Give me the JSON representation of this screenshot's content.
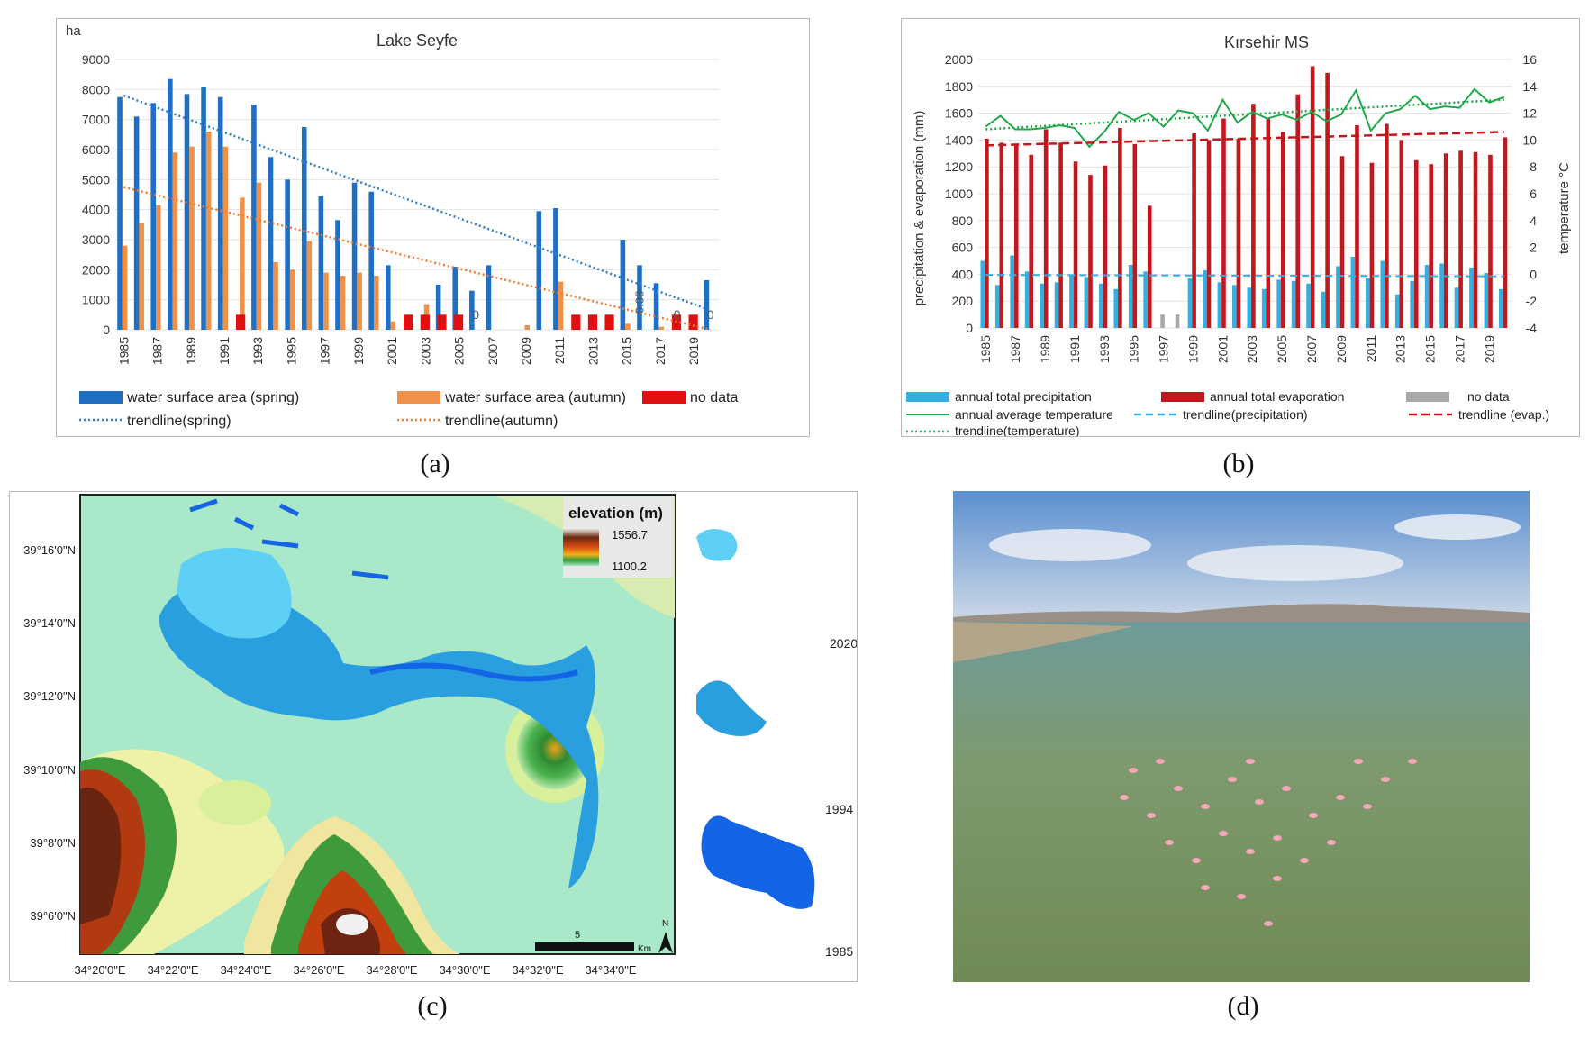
{
  "captions": {
    "a": "(a)",
    "b": "(b)",
    "c": "(c)",
    "d": "(d)"
  },
  "chart_data": [
    {
      "id": "a",
      "type": "bar",
      "title": "Lake Seyfe",
      "ylabel": "ha",
      "ylim": [
        0,
        9000
      ],
      "yticks": [
        0,
        1000,
        2000,
        3000,
        4000,
        5000,
        6000,
        7000,
        8000,
        9000
      ],
      "categories": [
        "1985",
        "1986",
        "1987",
        "1988",
        "1989",
        "1990",
        "1991",
        "1992",
        "1993",
        "1994",
        "1995",
        "1996",
        "1997",
        "1998",
        "1999",
        "2000",
        "2001",
        "2002",
        "2003",
        "2004",
        "2005",
        "2006",
        "2007",
        "2008",
        "2009",
        "2010",
        "2011",
        "2012",
        "2013",
        "2014",
        "2015",
        "2016",
        "2017",
        "2018",
        "2019",
        "2020"
      ],
      "xtick_labels": [
        "1985",
        "1987",
        "1989",
        "1991",
        "1993",
        "1995",
        "1997",
        "1999",
        "2001",
        "2003",
        "2005",
        "2007",
        "2009",
        "2011",
        "2013",
        "2015",
        "2017",
        "2019"
      ],
      "series": [
        {
          "name": "water surface area (spring)",
          "color": "#1f6fc5",
          "values": [
            7750,
            7100,
            7550,
            8350,
            7850,
            8100,
            7750,
            null,
            7500,
            5750,
            5000,
            6750,
            4450,
            3650,
            4900,
            4600,
            2150,
            null,
            null,
            1500,
            2100,
            1300,
            2150,
            0,
            null,
            3950,
            4050,
            null,
            null,
            null,
            3000,
            2150,
            1550,
            null,
            0,
            1650
          ]
        },
        {
          "name": "water surface area (autumn)",
          "color": "#f0914a",
          "values": [
            2800,
            3550,
            4150,
            5900,
            6100,
            6600,
            6100,
            4400,
            4900,
            2250,
            2000,
            2950,
            1900,
            1800,
            1900,
            1800,
            280,
            null,
            850,
            null,
            350,
            0,
            0,
            0,
            150,
            0,
            1600,
            null,
            null,
            null,
            200,
            0,
            100,
            null,
            150,
            0
          ]
        },
        {
          "name": "no data",
          "color": "#e01010",
          "values": [
            null,
            null,
            null,
            null,
            null,
            null,
            null,
            500,
            null,
            null,
            null,
            null,
            null,
            null,
            null,
            null,
            null,
            500,
            500,
            500,
            500,
            null,
            null,
            null,
            null,
            null,
            null,
            500,
            500,
            500,
            null,
            null,
            null,
            500,
            500,
            null
          ]
        }
      ],
      "trendlines": [
        {
          "name": "trendline(spring)",
          "color": "#2f7fc6",
          "start": 7800,
          "end": 650
        },
        {
          "name": "trendline(autumn)",
          "color": "#f07a30",
          "start": 4750,
          "end": 0
        }
      ],
      "annotations": [
        {
          "text": "0",
          "year": "2006"
        },
        {
          "text": "0.38",
          "year": "2016"
        },
        {
          "text": "0",
          "year": "2018"
        },
        {
          "text": "0",
          "year": "2020"
        }
      ],
      "legend": {
        "spring": "water surface area (spring)",
        "autumn": "water surface area (autumn)",
        "nodata": "no data",
        "trend_spring": "trendline(spring)",
        "trend_autumn": "trendline(autumn)"
      }
    },
    {
      "id": "b",
      "type": "bar",
      "title": "Kırsehir MS",
      "ylabel_left": "precipitation & evaporation (mm)",
      "ylabel_right": "temperature °C",
      "ylim_left": [
        0,
        2000
      ],
      "yticks_left": [
        0,
        200,
        400,
        600,
        800,
        1000,
        1200,
        1400,
        1600,
        1800,
        2000
      ],
      "ylim_right": [
        -4,
        16
      ],
      "yticks_right": [
        -4,
        -2,
        0,
        2,
        4,
        6,
        8,
        10,
        12,
        14,
        16
      ],
      "categories": [
        "1985",
        "1986",
        "1987",
        "1988",
        "1989",
        "1990",
        "1991",
        "1992",
        "1993",
        "1994",
        "1995",
        "1996",
        "1997",
        "1998",
        "1999",
        "2000",
        "2001",
        "2002",
        "2003",
        "2004",
        "2005",
        "2006",
        "2007",
        "2008",
        "2009",
        "2010",
        "2011",
        "2012",
        "2013",
        "2014",
        "2015",
        "2016",
        "2017",
        "2018",
        "2019",
        "2020"
      ],
      "xtick_labels": [
        "1985",
        "1987",
        "1989",
        "1991",
        "1993",
        "1995",
        "1997",
        "1999",
        "2001",
        "2003",
        "2005",
        "2007",
        "2009",
        "2011",
        "2013",
        "2015",
        "2017",
        "2019"
      ],
      "series": [
        {
          "name": "annual total precipitation",
          "color": "#35aee0",
          "values": [
            500,
            320,
            540,
            420,
            330,
            340,
            400,
            380,
            330,
            290,
            470,
            420,
            null,
            null,
            370,
            430,
            340,
            320,
            300,
            290,
            360,
            350,
            330,
            270,
            460,
            530,
            370,
            500,
            250,
            350,
            470,
            480,
            300,
            450,
            410,
            290
          ]
        },
        {
          "name": "annual total evaporation",
          "color": "#c0181c",
          "values": [
            1410,
            1380,
            1360,
            1290,
            1480,
            1380,
            1240,
            1140,
            1210,
            1490,
            1370,
            910,
            null,
            null,
            1450,
            1400,
            1560,
            1410,
            1670,
            1560,
            1460,
            1740,
            1950,
            1900,
            1280,
            1510,
            1230,
            1520,
            1400,
            1250,
            1220,
            1300,
            1320,
            1310,
            1290,
            1420
          ]
        },
        {
          "name": "no data",
          "color": "#a9a9a9",
          "values": [
            null,
            null,
            null,
            null,
            null,
            null,
            null,
            null,
            null,
            null,
            null,
            null,
            100,
            100,
            null,
            null,
            null,
            null,
            null,
            null,
            null,
            null,
            null,
            null,
            null,
            null,
            null,
            null,
            null,
            null,
            null,
            null,
            null,
            null,
            null,
            null
          ]
        },
        {
          "name": "annual average temperature",
          "color": "#22a84a",
          "axis": "right",
          "values": [
            11.0,
            11.8,
            10.8,
            10.8,
            10.9,
            11.1,
            10.9,
            9.5,
            10.6,
            12.1,
            11.5,
            12.0,
            11.0,
            12.2,
            12.0,
            10.7,
            13.0,
            11.3,
            12.1,
            11.6,
            11.9,
            11.5,
            12.1,
            11.4,
            11.9,
            13.7,
            10.7,
            12.0,
            12.3,
            13.3,
            12.3,
            12.5,
            12.4,
            13.8,
            12.8,
            13.2
          ]
        }
      ],
      "trendlines": [
        {
          "name": "trendline(precipitation)",
          "color": "#35aee0",
          "start": 395,
          "end": 385
        },
        {
          "name": "trendline (evap.)",
          "color": "#c0181c",
          "start": 1360,
          "end": 1460
        },
        {
          "name": "trendline(temperature)",
          "color": "#22a84a",
          "axis": "right",
          "start": 10.8,
          "end": 13.0
        }
      ],
      "legend": {
        "precip": "annual total precipitation",
        "evap": "annual total evaporation",
        "nodata": "no data",
        "temp": "annual average temperature",
        "trend_precip": "trendline(precipitation)",
        "trend_evap": "trendline (evap.)",
        "trend_temp": "trendline(temperature)"
      }
    }
  ],
  "map": {
    "legend_title": "elevation (m)",
    "legend_max": "1556.7",
    "legend_min": "1100.2",
    "lat_labels": [
      "39°16'0\"N",
      "39°14'0\"N",
      "39°12'0\"N",
      "39°10'0\"N",
      "39°8'0\"N",
      "39°6'0\"N"
    ],
    "lon_labels": [
      "34°20'0\"E",
      "34°22'0\"E",
      "34°24'0\"E",
      "34°26'0\"E",
      "34°28'0\"E",
      "34°30'0\"E",
      "34°32'0\"E",
      "34°34'0\"E"
    ],
    "scale_label": "5",
    "scale_unit": "Km",
    "north_label": "N",
    "inset_years": [
      "2020",
      "1994",
      "1985"
    ],
    "colors": {
      "lake_2020": "#5fd0f5",
      "lake_1994": "#2a9fe0",
      "lake_1985": "#1464e6"
    }
  }
}
